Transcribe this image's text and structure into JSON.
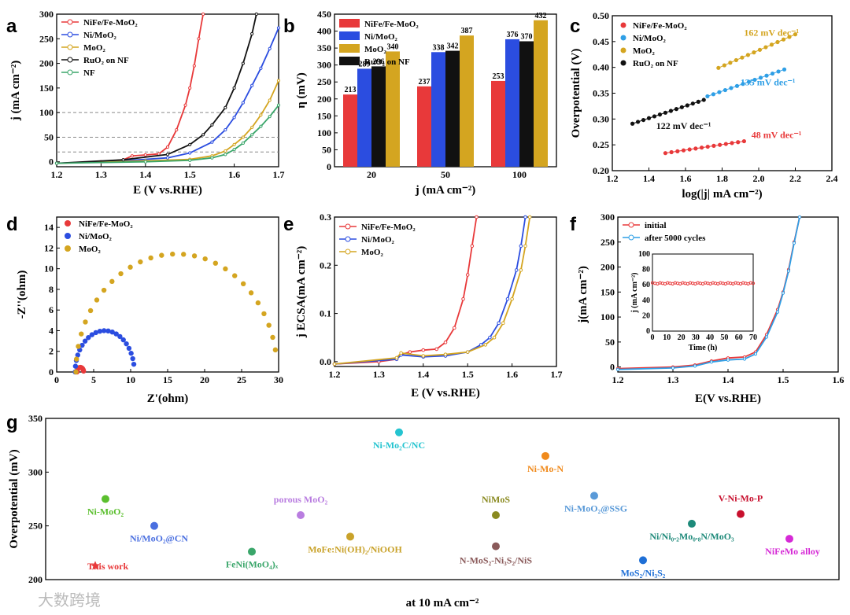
{
  "watermark": "大数跨境",
  "colors": {
    "red": "#e8393a",
    "blue": "#2b4de0",
    "gold": "#d4a520",
    "black": "#111111",
    "green": "#3aa66a",
    "lblue": "#2f9fe6"
  },
  "chart_data": [
    {
      "panel": "a",
      "type": "line",
      "xlabel": "E (V vs.RHE)",
      "ylabel": "j (mA cm⁻²)",
      "xlim": [
        1.2,
        1.7
      ],
      "ylim": [
        -10,
        300
      ],
      "xticks": [
        "1.2",
        "1.3",
        "1.4",
        "1.5",
        "1.6",
        "1.7"
      ],
      "yticks": [
        "0",
        "50",
        "100",
        "150",
        "200",
        "250",
        "300"
      ],
      "dashed_lines_y": [
        20,
        50,
        100
      ],
      "series": [
        {
          "name": "NiFe/Fe-MoO₂",
          "color": "red",
          "x": [
            1.2,
            1.3,
            1.35,
            1.37,
            1.4,
            1.43,
            1.45,
            1.47,
            1.49,
            1.5,
            1.51,
            1.52,
            1.53
          ],
          "y": [
            -3,
            0,
            4,
            12,
            14,
            16,
            30,
            65,
            115,
            150,
            195,
            250,
            300
          ]
        },
        {
          "name": "Ni/MoO₂",
          "color": "blue",
          "x": [
            1.2,
            1.35,
            1.45,
            1.5,
            1.55,
            1.58,
            1.6,
            1.62,
            1.64,
            1.66,
            1.68,
            1.7
          ],
          "y": [
            -3,
            2,
            8,
            18,
            40,
            65,
            90,
            120,
            155,
            190,
            230,
            272
          ]
        },
        {
          "name": "MoO₂",
          "color": "gold",
          "x": [
            1.2,
            1.4,
            1.5,
            1.55,
            1.58,
            1.6,
            1.62,
            1.64,
            1.66,
            1.68,
            1.7
          ],
          "y": [
            -3,
            2,
            5,
            12,
            22,
            35,
            50,
            70,
            95,
            125,
            165
          ]
        },
        {
          "name": "RuO₂ on NF",
          "color": "black",
          "x": [
            1.2,
            1.35,
            1.45,
            1.5,
            1.53,
            1.55,
            1.58,
            1.6,
            1.62,
            1.64,
            1.65
          ],
          "y": [
            -3,
            4,
            15,
            35,
            55,
            75,
            110,
            150,
            200,
            260,
            300
          ]
        },
        {
          "name": "NF",
          "color": "green",
          "x": [
            1.2,
            1.4,
            1.5,
            1.55,
            1.58,
            1.6,
            1.62,
            1.64,
            1.66,
            1.68,
            1.7
          ],
          "y": [
            -3,
            0,
            3,
            8,
            15,
            25,
            38,
            55,
            72,
            92,
            115
          ]
        }
      ]
    },
    {
      "panel": "b",
      "type": "bar",
      "xlabel": "j (mA cm⁻²)",
      "ylabel": "η (mV)",
      "ylim": [
        0,
        450
      ],
      "yticks": [
        "0",
        "50",
        "100",
        "150",
        "200",
        "250",
        "300",
        "350",
        "400",
        "450"
      ],
      "categories": [
        "20",
        "50",
        "100"
      ],
      "series": [
        {
          "name": "NiFe/Fe-MoO₂",
          "color": "red",
          "values": [
            213,
            237,
            253
          ]
        },
        {
          "name": "Ni/MoO₂",
          "color": "blue",
          "values": [
            289,
            338,
            376
          ]
        },
        {
          "name": "MoO₂",
          "color": "gold",
          "values": [
            340,
            387,
            432
          ]
        },
        {
          "name": "RuO₂ on NF",
          "color": "black",
          "values": [
            296,
            342,
            370
          ]
        }
      ],
      "bar_order": [
        "NiFe/Fe-MoO₂",
        "Ni/MoO₂",
        "RuO₂ on NF",
        "MoO₂"
      ]
    },
    {
      "panel": "c",
      "type": "scatter",
      "xlabel": "log(|j| mA cm⁻²)",
      "ylabel": "Overpotential (V)",
      "xlim": [
        1.2,
        2.4
      ],
      "ylim": [
        0.2,
        0.5
      ],
      "xticks": [
        "1.2",
        "1.4",
        "1.6",
        "1.8",
        "2.0",
        "2.2",
        "2.4"
      ],
      "yticks": [
        "0.20",
        "0.25",
        "0.30",
        "0.35",
        "0.40",
        "0.45",
        "0.50"
      ],
      "series": [
        {
          "name": "NiFe/Fe-MoO₂",
          "color": "red",
          "x0": 1.49,
          "x1": 1.92,
          "y0": 0.234,
          "y1": 0.257,
          "slope_label": "48 mV dec⁻¹"
        },
        {
          "name": "Ni/MoO₂",
          "color": "lblue",
          "x0": 1.72,
          "x1": 2.14,
          "y0": 0.344,
          "y1": 0.396,
          "slope_label": "135 mV dec⁻¹"
        },
        {
          "name": "MoO₂",
          "color": "gold",
          "x0": 1.78,
          "x1": 2.2,
          "y0": 0.399,
          "y1": 0.464,
          "slope_label": "162 mV dec⁻¹"
        },
        {
          "name": "RuO₂ on NF",
          "color": "black",
          "x0": 1.31,
          "x1": 1.7,
          "y0": 0.291,
          "y1": 0.337,
          "slope_label": "122 mV dec⁻¹"
        }
      ]
    },
    {
      "panel": "d",
      "type": "scatter",
      "xlabel": "Z'(ohm)",
      "ylabel": "-Z''(ohm)",
      "xlim": [
        0,
        30
      ],
      "ylim": [
        0,
        15
      ],
      "xticks": [
        "0",
        "5",
        "10",
        "15",
        "20",
        "25",
        "30"
      ],
      "yticks": [
        "0",
        "2",
        "4",
        "6",
        "8",
        "10",
        "12",
        "14"
      ],
      "series": [
        {
          "name": "NiFe/Fe-MoO₂",
          "color": "red",
          "center": 3.2,
          "radius": 0.45,
          "points": 10
        },
        {
          "name": "Ni/MoO₂",
          "color": "blue",
          "center": 6.5,
          "radius": 4.0,
          "points": 22
        },
        {
          "name": "MoO₂",
          "color": "gold",
          "center": 16.2,
          "radius": 13.6,
          "points": 28
        }
      ]
    },
    {
      "panel": "e",
      "type": "line",
      "xlabel": "E (V vs.RHE)",
      "ylabel": "j ECSA(mA cm⁻²)",
      "xlim": [
        1.2,
        1.7
      ],
      "ylim": [
        -0.01,
        0.3
      ],
      "xticks": [
        "1.2",
        "1.3",
        "1.4",
        "1.5",
        "1.6",
        "1.7"
      ],
      "yticks": [
        "0.0",
        "0.1",
        "0.2",
        "0.3"
      ],
      "series": [
        {
          "name": "NiFe/Fe-MoO₂",
          "color": "red",
          "x": [
            1.2,
            1.3,
            1.34,
            1.35,
            1.37,
            1.4,
            1.43,
            1.45,
            1.47,
            1.49,
            1.5,
            1.51,
            1.52
          ],
          "y": [
            -0.005,
            0,
            0.005,
            0.015,
            0.02,
            0.024,
            0.026,
            0.04,
            0.07,
            0.13,
            0.18,
            0.24,
            0.3
          ]
        },
        {
          "name": "Ni/MoO₂",
          "color": "blue",
          "x": [
            1.2,
            1.34,
            1.35,
            1.4,
            1.45,
            1.5,
            1.53,
            1.55,
            1.57,
            1.59,
            1.61,
            1.62,
            1.63
          ],
          "y": [
            -0.005,
            0.005,
            0.014,
            0.01,
            0.012,
            0.02,
            0.035,
            0.05,
            0.08,
            0.13,
            0.19,
            0.24,
            0.3
          ]
        },
        {
          "name": "MoO₂",
          "color": "gold",
          "x": [
            1.2,
            1.34,
            1.35,
            1.4,
            1.45,
            1.5,
            1.54,
            1.56,
            1.58,
            1.6,
            1.62,
            1.63,
            1.64
          ],
          "y": [
            -0.005,
            0.008,
            0.018,
            0.012,
            0.015,
            0.02,
            0.035,
            0.05,
            0.08,
            0.13,
            0.19,
            0.24,
            0.3
          ]
        }
      ]
    },
    {
      "panel": "f",
      "type": "line",
      "xlabel": "E(V vs.RHE)",
      "ylabel": "j(mA cm⁻²)",
      "xlim": [
        1.2,
        1.6
      ],
      "ylim": [
        -10,
        300
      ],
      "xticks": [
        "1.2",
        "1.3",
        "1.4",
        "1.5",
        "1.6"
      ],
      "yticks": [
        "0",
        "50",
        "100",
        "150",
        "200",
        "250",
        "300"
      ],
      "series": [
        {
          "name": "initial",
          "color": "red",
          "x": [
            1.2,
            1.3,
            1.34,
            1.37,
            1.4,
            1.43,
            1.45,
            1.47,
            1.49,
            1.5,
            1.51,
            1.52,
            1.53
          ],
          "y": [
            -3,
            0,
            4,
            12,
            18,
            20,
            30,
            65,
            115,
            150,
            195,
            250,
            300
          ]
        },
        {
          "name": "after 5000 cycles",
          "color": "lblue",
          "x": [
            1.2,
            1.3,
            1.34,
            1.37,
            1.4,
            1.43,
            1.45,
            1.47,
            1.49,
            1.5,
            1.51,
            1.52,
            1.53
          ],
          "y": [
            -5,
            -2,
            2,
            10,
            14,
            16,
            26,
            60,
            110,
            148,
            192,
            248,
            300
          ]
        }
      ],
      "inset": {
        "xlabel": "Time (h)",
        "ylabel": "j (mA cm⁻²)",
        "xlim": [
          0,
          70
        ],
        "ylim": [
          0,
          100
        ],
        "xticks": [
          "0",
          "10",
          "20",
          "30",
          "40",
          "50",
          "60",
          "70"
        ],
        "yticks": [
          "0",
          "20",
          "40",
          "60",
          "80",
          "100"
        ],
        "value": 62
      }
    },
    {
      "panel": "g",
      "type": "scatter",
      "xlabel": "at 10 mA cm⁻²",
      "ylabel": "Overpotential (mV)",
      "ylim": [
        200,
        350
      ],
      "yticks": [
        "200",
        "250",
        "300",
        "350"
      ],
      "points": [
        {
          "label": "Ni-MoO₂",
          "y": 275,
          "color": "#5bbf2e"
        },
        {
          "label": "Ni/MoO₂@CN",
          "y": 250,
          "color": "#4a6fe0"
        },
        {
          "label": "This work",
          "y": 213,
          "color": "#e8393a",
          "star": true
        },
        {
          "label": "FeNi(MoO₄)ₓ",
          "y": 226,
          "color": "#3aa66a"
        },
        {
          "label": "porous MoO₂",
          "y": 260,
          "color": "#b97de0"
        },
        {
          "label": "MoFe:Ni(OH)₂/NiOOH",
          "y": 240,
          "color": "#c9a22a"
        },
        {
          "label": "Ni-Mo₂C/NC",
          "y": 337,
          "color": "#25c4d0"
        },
        {
          "label": "NiMoS",
          "y": 260,
          "color": "#8a8a20"
        },
        {
          "label": "N-MoS₂-Ni₃S₂/NiS",
          "y": 231,
          "color": "#8a5a5a"
        },
        {
          "label": "Ni-Mo-N",
          "y": 315,
          "color": "#f08a1c"
        },
        {
          "label": "Ni-MoO₂@SSG",
          "y": 278,
          "color": "#5a9ad8"
        },
        {
          "label": "MoS₂/Ni₃S₂",
          "y": 218,
          "color": "#1e6fd6"
        },
        {
          "label": "Ni/Ni₀.₂Mo₀.₈N/MoO₃",
          "y": 252,
          "color": "#1e8a7a"
        },
        {
          "label": "V-Ni-Mo-P",
          "y": 261,
          "color": "#c8102e"
        },
        {
          "label": "NiFeMo alloy",
          "y": 238,
          "color": "#d62ad6"
        }
      ]
    }
  ]
}
